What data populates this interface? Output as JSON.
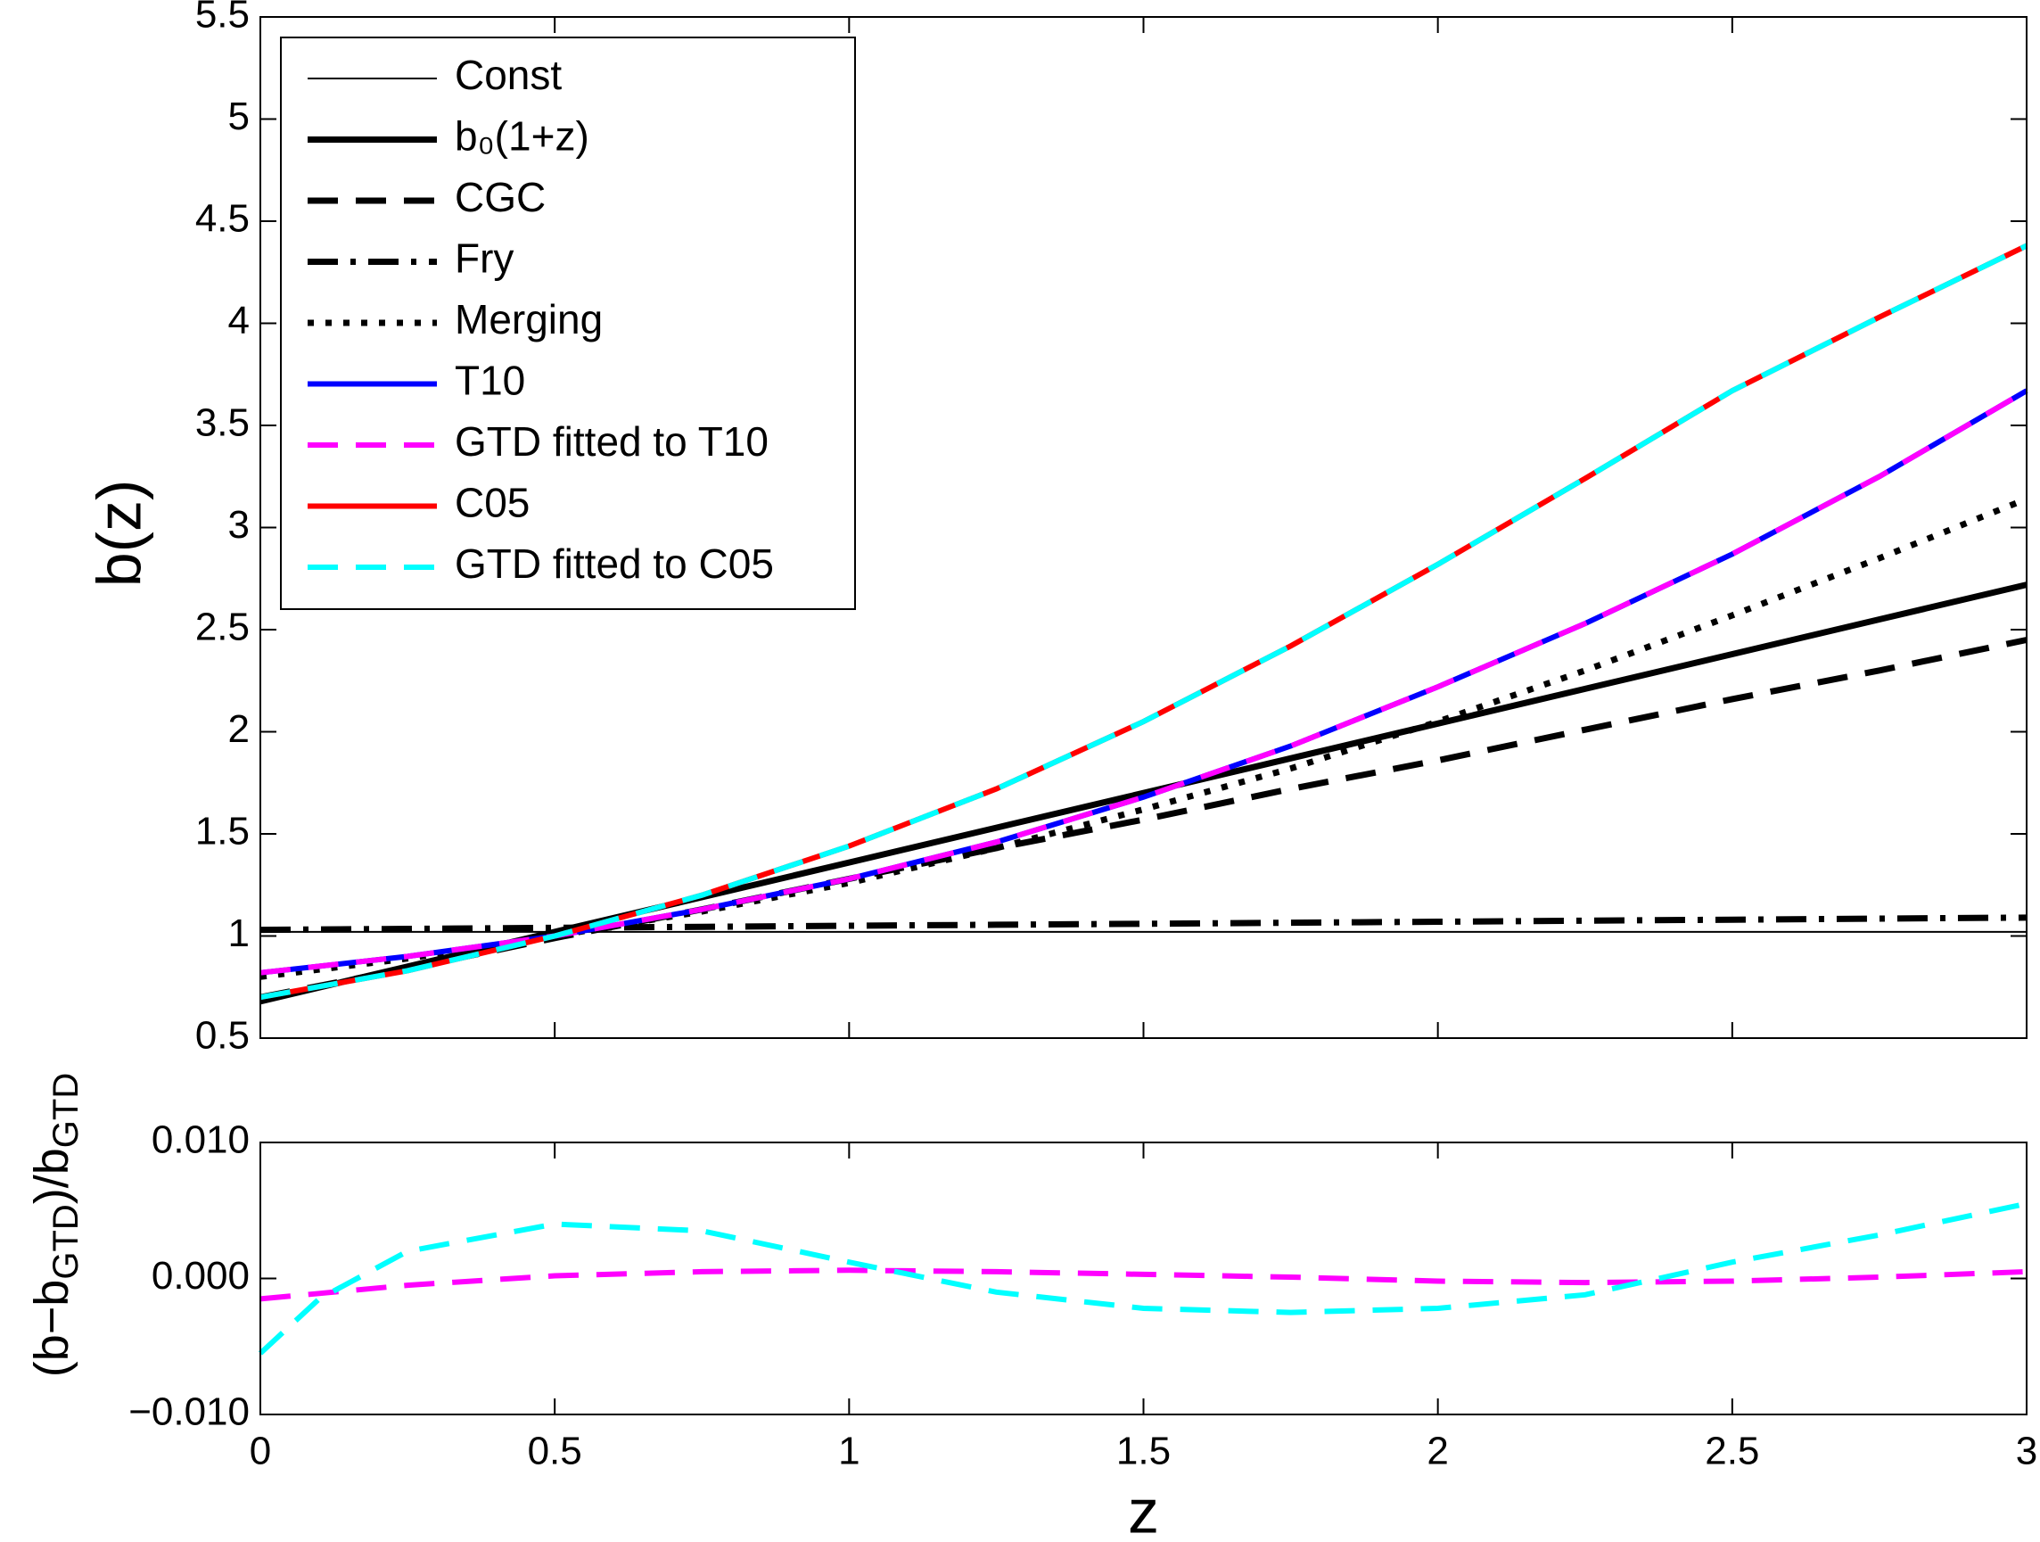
{
  "chart_data": [
    {
      "type": "line",
      "ylabel": "b(z)",
      "x": [
        0,
        0.25,
        0.5,
        0.75,
        1,
        1.25,
        1.5,
        1.75,
        2,
        2.25,
        2.5,
        2.75,
        3
      ],
      "xlim": [
        0,
        3
      ],
      "xticks": [
        0,
        0.5,
        1,
        1.5,
        2,
        2.5,
        3
      ],
      "ylim": [
        0.5,
        5.5
      ],
      "yticks": [
        0.5,
        1,
        1.5,
        2,
        2.5,
        3,
        3.5,
        4,
        4.5,
        5,
        5.5
      ],
      "legend": "upper left",
      "series": [
        {
          "name": "Const",
          "color": "#000000",
          "dash": "solid",
          "linewidth": "thin",
          "values": [
            1.02,
            1.02,
            1.02,
            1.02,
            1.02,
            1.02,
            1.02,
            1.02,
            1.02,
            1.02,
            1.02,
            1.02,
            1.02
          ]
        },
        {
          "name": "b₀(1+z)",
          "color": "#000000",
          "dash": "solid",
          "linewidth": "thick",
          "values": [
            0.68,
            0.85,
            1.02,
            1.19,
            1.36,
            1.53,
            1.7,
            1.87,
            2.04,
            2.21,
            2.38,
            2.55,
            2.72
          ]
        },
        {
          "name": "CGC",
          "color": "#000000",
          "dash": "dashed",
          "linewidth": "thick",
          "values": [
            0.7,
            0.84,
            0.99,
            1.13,
            1.28,
            1.43,
            1.57,
            1.72,
            1.86,
            2.01,
            2.16,
            2.3,
            2.45
          ]
        },
        {
          "name": "Fry",
          "color": "#000000",
          "dash": "dashdot",
          "linewidth": "thick",
          "values": [
            1.03,
            1.035,
            1.04,
            1.045,
            1.05,
            1.055,
            1.06,
            1.065,
            1.07,
            1.075,
            1.08,
            1.085,
            1.09
          ]
        },
        {
          "name": "Merging",
          "color": "#000000",
          "dash": "dotted",
          "linewidth": "thick",
          "values": [
            0.8,
            0.89,
            1.0,
            1.12,
            1.26,
            1.43,
            1.62,
            1.82,
            2.05,
            2.3,
            2.57,
            2.85,
            3.14
          ]
        },
        {
          "name": "T10",
          "color": "#0000ff",
          "dash": "solid",
          "linewidth": "medium",
          "values": [
            0.82,
            0.9,
            1.0,
            1.13,
            1.28,
            1.46,
            1.68,
            1.93,
            2.22,
            2.53,
            2.87,
            3.25,
            3.67
          ]
        },
        {
          "name": "GTD fitted to T10",
          "color": "#ff00ff",
          "dash": "dashed",
          "linewidth": "medium",
          "values": [
            0.82,
            0.9,
            1.0,
            1.13,
            1.28,
            1.46,
            1.68,
            1.93,
            2.22,
            2.53,
            2.87,
            3.25,
            3.67
          ]
        },
        {
          "name": "C05",
          "color": "#ff0000",
          "dash": "solid",
          "linewidth": "medium",
          "values": [
            0.7,
            0.83,
            1.0,
            1.2,
            1.44,
            1.72,
            2.05,
            2.42,
            2.82,
            3.24,
            3.67,
            4.03,
            4.38
          ]
        },
        {
          "name": "GTD fitted to C05",
          "color": "#00ffff",
          "dash": "dashed",
          "linewidth": "medium",
          "values": [
            0.7,
            0.83,
            1.0,
            1.2,
            1.44,
            1.72,
            2.05,
            2.42,
            2.82,
            3.24,
            3.67,
            4.03,
            4.38
          ]
        }
      ]
    },
    {
      "type": "line",
      "xlabel": "z",
      "ylabel": [
        {
          "text": "(b−b"
        },
        {
          "text": "GTD",
          "sub": true
        },
        {
          "text": ")/b"
        },
        {
          "text": "GTD",
          "sub": true
        }
      ],
      "x": [
        0,
        0.1,
        0.25,
        0.5,
        0.75,
        1,
        1.25,
        1.5,
        1.75,
        2,
        2.25,
        2.5,
        2.75,
        3
      ],
      "xlim": [
        0,
        3
      ],
      "xticks": [
        0,
        0.5,
        1,
        1.5,
        2,
        2.5,
        3
      ],
      "ylim": [
        -0.01,
        0.01
      ],
      "yticks": [
        {
          "value": -0.01,
          "label": "−0.010"
        },
        {
          "value": 0,
          "label": "0.000"
        },
        {
          "value": 0.01,
          "label": "0.010"
        }
      ],
      "series": [
        {
          "color": "#ff00ff",
          "dash": "dashed",
          "linewidth": "medium",
          "values": [
            -0.0015,
            -0.0011,
            -0.0005,
            0.0002,
            0.0005,
            0.0006,
            0.0005,
            0.0003,
            0.0001,
            -0.0002,
            -0.0003,
            -0.0002,
            0.0001,
            0.0005
          ]
        },
        {
          "color": "#00ffff",
          "dash": "dashed",
          "linewidth": "medium",
          "values": [
            -0.0055,
            -0.0015,
            0.002,
            0.004,
            0.0035,
            0.0012,
            -0.001,
            -0.0022,
            -0.0025,
            -0.0022,
            -0.0012,
            0.0012,
            0.0032,
            0.0055
          ]
        }
      ]
    }
  ]
}
